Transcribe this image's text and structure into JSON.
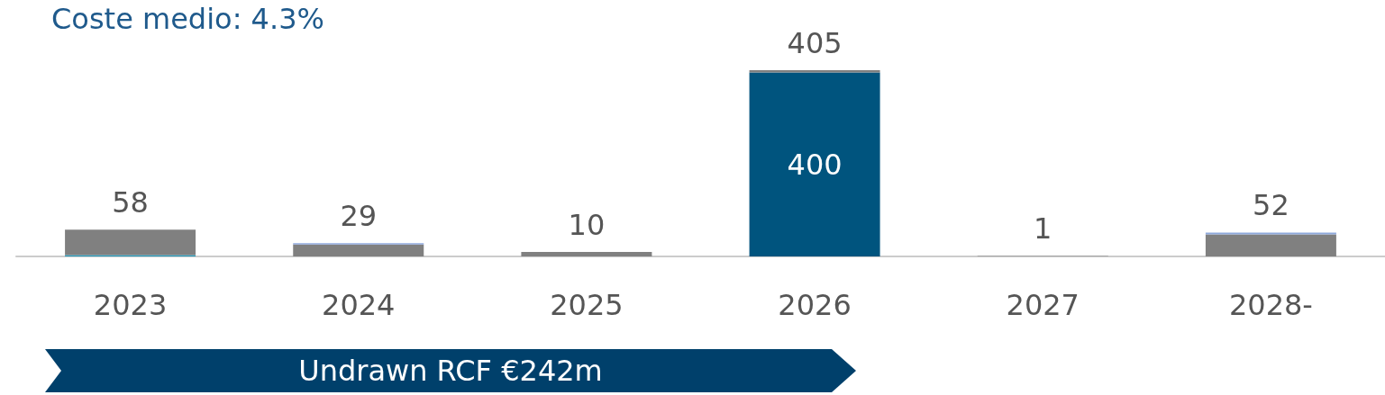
{
  "chart_data": {
    "type": "bar",
    "title": "Coste medio: 4.3%",
    "categories": [
      "2023",
      "2024",
      "2025",
      "2026",
      "2027",
      "2028-"
    ],
    "series": [
      {
        "color": "#2196b6",
        "values": [
          3,
          0,
          0,
          0,
          0,
          0
        ]
      },
      {
        "color": "#00547e",
        "values": [
          0,
          0,
          0,
          400,
          0,
          0
        ],
        "value_labels": [
          null,
          null,
          null,
          "400",
          null,
          null
        ]
      },
      {
        "color": "#808080",
        "values": [
          55,
          26,
          10,
          5,
          1,
          48
        ]
      },
      {
        "color": "#8fa9dc",
        "values": [
          0,
          3,
          0,
          0,
          0,
          4
        ]
      }
    ],
    "stacked": true,
    "totals": [
      "58",
      "29",
      "10",
      "405",
      "1",
      "52"
    ],
    "tick_labels": "x",
    "annotations": [
      "Undrawn RCF €242m"
    ]
  }
}
